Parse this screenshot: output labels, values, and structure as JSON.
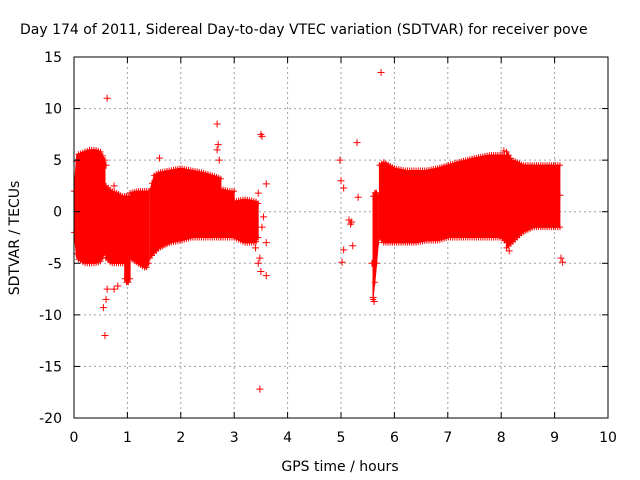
{
  "chart_data": {
    "type": "scatter",
    "title": "Day 174 of 2011, Sidereal Day-to-day VTEC variation (SDTVAR) for receiver pove",
    "xlabel": "GPS time / hours",
    "ylabel": "SDTVAR / TECUs",
    "xlim": [
      0,
      10
    ],
    "ylim": [
      -20,
      15
    ],
    "x_ticks": [
      "0",
      "1",
      "2",
      "3",
      "4",
      "5",
      "6",
      "7",
      "8",
      "9",
      "10"
    ],
    "y_ticks": [
      "15",
      "10",
      "5",
      "0",
      "-5",
      "-10",
      "-15",
      "-20"
    ],
    "grid": true,
    "marker": "+",
    "color": "#ff0000",
    "bands": [
      {
        "x": [
          0.0,
          0.05,
          0.2,
          0.3,
          0.4,
          0.5,
          0.58
        ],
        "upper": [
          2.0,
          5.5,
          5.8,
          6.0,
          6.0,
          5.8,
          5.0
        ],
        "lower": [
          -2.0,
          -4.5,
          -5.0,
          -5.0,
          -5.0,
          -4.8,
          -4.0
        ]
      },
      {
        "x": [
          0.6,
          0.7,
          0.8,
          0.9,
          0.95
        ],
        "upper": [
          2.5,
          2.0,
          1.8,
          1.5,
          1.5
        ],
        "lower": [
          -4.5,
          -5.0,
          -5.0,
          -5.0,
          -5.0
        ]
      },
      {
        "x": [
          0.95,
          1.0,
          1.05
        ],
        "upper": [
          1.5,
          1.5,
          1.5
        ],
        "lower": [
          -6.5,
          -7.0,
          -6.5
        ]
      },
      {
        "x": [
          1.05,
          1.2,
          1.35,
          1.4
        ],
        "upper": [
          1.8,
          2.0,
          2.0,
          2.0
        ],
        "lower": [
          -4.5,
          -5.0,
          -5.5,
          -5.0
        ]
      },
      {
        "x": [
          1.42,
          1.5,
          1.6,
          1.8,
          2.0,
          2.2,
          2.4,
          2.6,
          2.75
        ],
        "upper": [
          2.0,
          3.5,
          3.8,
          4.0,
          4.2,
          4.0,
          3.8,
          3.5,
          3.2
        ],
        "lower": [
          -4.5,
          -4.0,
          -3.5,
          -3.0,
          -2.8,
          -2.5,
          -2.5,
          -2.5,
          -2.5
        ]
      },
      {
        "x": [
          2.75,
          2.9,
          3.0
        ],
        "upper": [
          2.2,
          2.0,
          2.0
        ],
        "lower": [
          -2.5,
          -2.5,
          -2.5
        ]
      },
      {
        "x": [
          3.0,
          3.2,
          3.4,
          3.45
        ],
        "upper": [
          1.0,
          1.2,
          1.0,
          0.8
        ],
        "lower": [
          -2.5,
          -3.0,
          -3.0,
          -2.5
        ]
      },
      {
        "x": [
          5.6,
          5.65,
          5.7
        ],
        "upper": [
          1.5,
          2.0,
          1.5
        ],
        "lower": [
          -8.5,
          -6.0,
          -3.0
        ]
      },
      {
        "x": [
          5.72,
          5.8,
          6.0,
          6.2,
          6.4,
          6.6,
          6.8,
          7.0,
          7.2,
          7.5,
          7.8,
          8.0,
          8.1
        ],
        "upper": [
          4.5,
          4.8,
          4.2,
          4.0,
          4.0,
          4.0,
          4.2,
          4.5,
          4.8,
          5.2,
          5.5,
          5.5,
          5.5
        ],
        "lower": [
          -2.5,
          -3.0,
          -3.0,
          -3.0,
          -3.0,
          -2.8,
          -2.8,
          -2.5,
          -2.5,
          -2.5,
          -2.5,
          -2.5,
          -3.0
        ]
      },
      {
        "x": [
          8.1,
          8.2,
          8.3,
          8.4,
          8.6,
          8.8,
          9.0,
          9.1
        ],
        "upper": [
          5.8,
          5.0,
          4.8,
          4.5,
          4.5,
          4.5,
          4.5,
          4.5
        ],
        "lower": [
          -3.5,
          -3.0,
          -2.5,
          -2.0,
          -1.5,
          -1.5,
          -1.5,
          -1.5
        ]
      }
    ],
    "outliers": [
      [
        0.62,
        11.0
      ],
      [
        0.58,
        -12.0
      ],
      [
        0.55,
        -9.3
      ],
      [
        0.6,
        -8.5
      ],
      [
        0.62,
        -7.5
      ],
      [
        0.75,
        -7.5
      ],
      [
        0.82,
        -7.2
      ],
      [
        0.75,
        2.5
      ],
      [
        0.6,
        4.5
      ],
      [
        1.6,
        5.2
      ],
      [
        2.68,
        8.5
      ],
      [
        2.7,
        6.5
      ],
      [
        2.68,
        6.0
      ],
      [
        2.72,
        5.0
      ],
      [
        3.5,
        7.5
      ],
      [
        3.52,
        7.3
      ],
      [
        3.6,
        2.7
      ],
      [
        3.45,
        1.8
      ],
      [
        3.48,
        -4.5
      ],
      [
        3.45,
        -5.0
      ],
      [
        3.5,
        -5.8
      ],
      [
        3.6,
        -6.2
      ],
      [
        3.6,
        -3.0
      ],
      [
        3.48,
        -17.2
      ],
      [
        3.52,
        -1.5
      ],
      [
        3.55,
        -0.5
      ],
      [
        3.4,
        -3.5
      ],
      [
        4.98,
        5.0
      ],
      [
        5.0,
        3.0
      ],
      [
        5.05,
        2.3
      ],
      [
        5.3,
        6.7
      ],
      [
        5.32,
        1.4
      ],
      [
        5.15,
        -0.8
      ],
      [
        5.2,
        -1.0
      ],
      [
        5.18,
        -1.2
      ],
      [
        5.22,
        -3.3
      ],
      [
        5.05,
        -3.7
      ],
      [
        5.02,
        -4.9
      ],
      [
        5.75,
        13.5
      ],
      [
        5.6,
        -8.3
      ],
      [
        5.62,
        -8.7
      ],
      [
        5.58,
        -5.0
      ],
      [
        8.15,
        -3.8
      ],
      [
        9.1,
        1.6
      ],
      [
        9.12,
        -4.5
      ],
      [
        9.15,
        -4.9
      ],
      [
        8.05,
        5.9
      ]
    ]
  }
}
